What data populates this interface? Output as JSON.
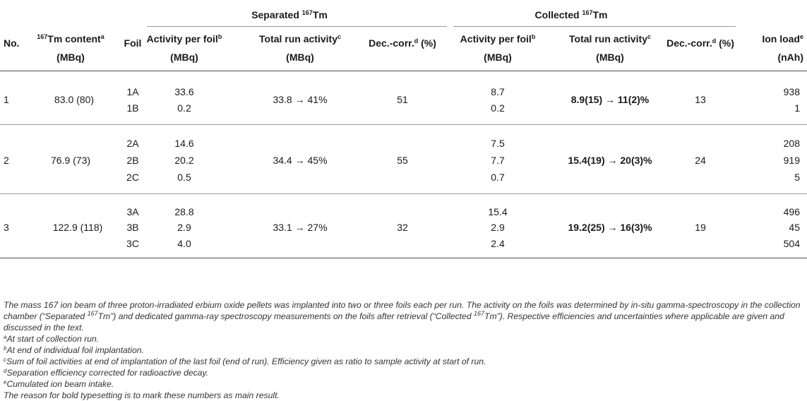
{
  "groups": {
    "separated": {
      "label": "Separated ",
      "sup": "167",
      "label_end": "Tm"
    },
    "collected": {
      "label": "Collected ",
      "sup": "167",
      "label_end": "Tm"
    }
  },
  "headers": {
    "no": "No.",
    "content_sup": "167",
    "content_label": "Tm content",
    "content_note": "a",
    "content_unit": "(MBq)",
    "foil": "Foil",
    "act_label": "Activity per foil",
    "act_note": "b",
    "act_unit": "(MBq)",
    "total_label": "Total run activity",
    "total_note": "c",
    "total_unit": "(MBq)",
    "dec_label": "Dec.-corr.",
    "dec_note": "d",
    "dec_unit": " (%)",
    "ion_label": "Ion load",
    "ion_note": "e",
    "ion_unit": "(nAh)"
  },
  "rows": [
    {
      "no": "1",
      "content": "83.0 (80)",
      "foils": [
        "1A",
        "1B"
      ],
      "sep_act": [
        "33.6",
        "0.2"
      ],
      "sep_total": "33.8 → 41%",
      "sep_dec": "51",
      "col_act": [
        "8.7",
        "0.2"
      ],
      "col_total": "8.9(15) → 11(2)%",
      "col_dec": "13",
      "ion": [
        "938",
        "1"
      ]
    },
    {
      "no": "2",
      "content": "76.9 (73)",
      "foils": [
        "2A",
        "2B",
        "2C"
      ],
      "sep_act": [
        "14.6",
        "20.2",
        "0.5"
      ],
      "sep_total": "34.4 → 45%",
      "sep_dec": "55",
      "col_act": [
        "7.5",
        "7.7",
        "0.7"
      ],
      "col_total": "15.4(19) → 20(3)%",
      "col_dec": "24",
      "ion": [
        "208",
        "919",
        "5"
      ]
    },
    {
      "no": "3",
      "content": "122.9 (118)",
      "foils": [
        "3A",
        "3B",
        "3C"
      ],
      "sep_act": [
        "28.8",
        "2.9",
        "4.0"
      ],
      "sep_total": "33.1 → 27%",
      "sep_dec": "32",
      "col_act": [
        "15.4",
        "2.9",
        "2.4"
      ],
      "col_total": "19.2(25) → 16(3)%",
      "col_dec": "19",
      "ion": [
        "496",
        "45",
        "504"
      ]
    }
  ],
  "notes": {
    "caption_a": "The mass 167 ion beam of three proton-irradiated erbium oxide pellets was implanted into two or three foils each per run. The activity on the foils was determined by in-situ gamma-spectroscopy in the collection chamber (“Separated ",
    "caption_sup1": "167",
    "caption_b": "Tm”) and dedicated gamma-ray spectroscopy measurements on the foils after retrieval (“Collected ",
    "caption_sup2": "167",
    "caption_c": "Tm”). Respective efficiencies and uncertainties where applicable are given and discussed in the text.",
    "footnotes": [
      {
        "mark": "a",
        "text": "At start of collection run."
      },
      {
        "mark": "b",
        "text": "At end of individual foil implantation."
      },
      {
        "mark": "c",
        "text": "Sum of foil activities at end of implantation of the last foil (end of run). Efficiency given as ratio to sample activity at start of run."
      },
      {
        "mark": "d",
        "text": "Separation efficiency corrected for radioactive decay."
      },
      {
        "mark": "e",
        "text": "Cumulated ion beam intake."
      }
    ],
    "final": "The reason for bold typesetting is to mark these numbers as main result."
  }
}
